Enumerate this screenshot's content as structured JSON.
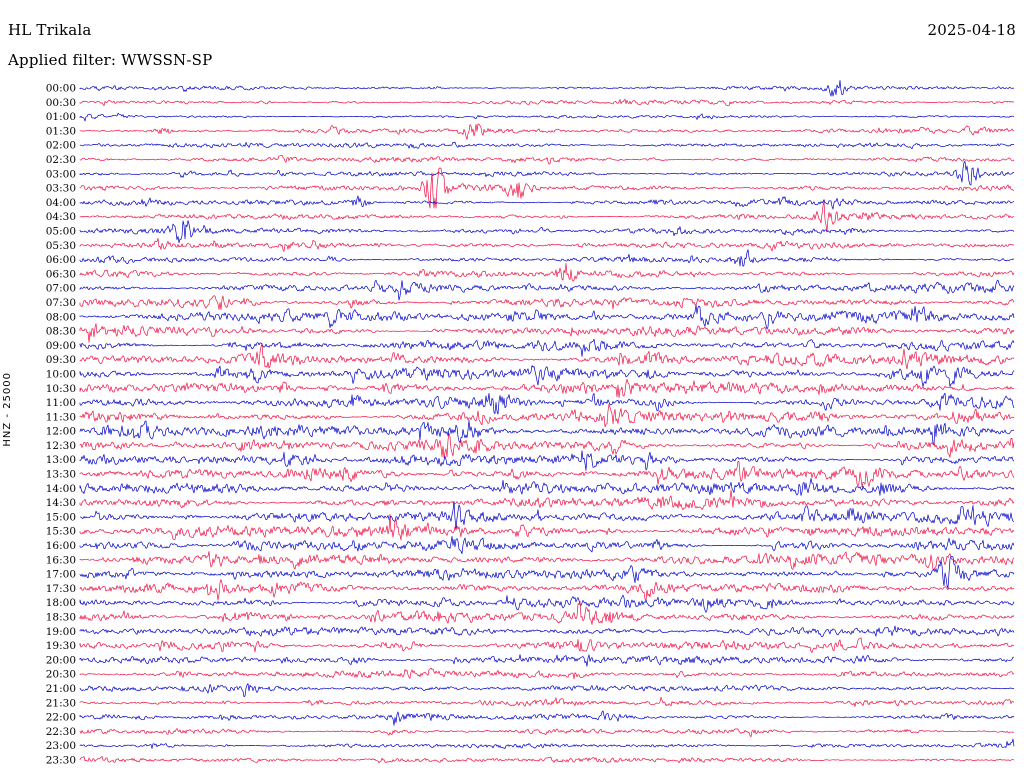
{
  "header": {
    "station": "HL Trikala",
    "date": "2025-04-18",
    "filter_label": "Applied filter: WWSSN-SP"
  },
  "axis": {
    "channel_scale_label": "HNZ - 25000"
  },
  "chart_data": {
    "type": "seismogram",
    "title": "HL Trikala",
    "date": "2025-04-18",
    "filter": "WWSSN-SP",
    "channel": "HNZ",
    "scale": 25000,
    "row_interval_minutes": 30,
    "rows_per_day": 48,
    "trace_colors": [
      "#0000c8",
      "#ee1144"
    ],
    "background": "#ffffff",
    "rows": [
      {
        "time": "00:00",
        "color": 0,
        "amp": 0.3
      },
      {
        "time": "00:30",
        "color": 1,
        "amp": 0.32
      },
      {
        "time": "01:00",
        "color": 0,
        "amp": 0.28
      },
      {
        "time": "01:30",
        "color": 1,
        "amp": 0.38
      },
      {
        "time": "02:00",
        "color": 0,
        "amp": 0.36
      },
      {
        "time": "02:30",
        "color": 1,
        "amp": 0.42
      },
      {
        "time": "03:00",
        "color": 0,
        "amp": 0.45
      },
      {
        "time": "03:30",
        "color": 1,
        "amp": 0.5
      },
      {
        "time": "04:00",
        "color": 0,
        "amp": 0.52
      },
      {
        "time": "04:30",
        "color": 1,
        "amp": 0.5
      },
      {
        "time": "05:00",
        "color": 0,
        "amp": 0.45
      },
      {
        "time": "05:30",
        "color": 1,
        "amp": 0.48
      },
      {
        "time": "06:00",
        "color": 0,
        "amp": 0.5
      },
      {
        "time": "06:30",
        "color": 1,
        "amp": 0.6
      },
      {
        "time": "07:00",
        "color": 0,
        "amp": 0.72
      },
      {
        "time": "07:30",
        "color": 1,
        "amp": 0.85
      },
      {
        "time": "08:00",
        "color": 0,
        "amp": 0.9
      },
      {
        "time": "08:30",
        "color": 1,
        "amp": 0.88
      },
      {
        "time": "09:00",
        "color": 0,
        "amp": 0.92
      },
      {
        "time": "09:30",
        "color": 1,
        "amp": 0.95
      },
      {
        "time": "10:00",
        "color": 0,
        "amp": 0.92
      },
      {
        "time": "10:30",
        "color": 1,
        "amp": 0.95
      },
      {
        "time": "11:00",
        "color": 0,
        "amp": 1.0
      },
      {
        "time": "11:30",
        "color": 1,
        "amp": 1.0
      },
      {
        "time": "12:00",
        "color": 0,
        "amp": 0.98
      },
      {
        "time": "12:30",
        "color": 1,
        "amp": 0.95
      },
      {
        "time": "13:00",
        "color": 0,
        "amp": 0.95
      },
      {
        "time": "13:30",
        "color": 1,
        "amp": 0.92
      },
      {
        "time": "14:00",
        "color": 0,
        "amp": 0.95
      },
      {
        "time": "14:30",
        "color": 1,
        "amp": 0.95
      },
      {
        "time": "15:00",
        "color": 0,
        "amp": 0.98
      },
      {
        "time": "15:30",
        "color": 1,
        "amp": 0.95
      },
      {
        "time": "16:00",
        "color": 0,
        "amp": 0.92
      },
      {
        "time": "16:30",
        "color": 1,
        "amp": 0.9
      },
      {
        "time": "17:00",
        "color": 0,
        "amp": 0.85
      },
      {
        "time": "17:30",
        "color": 1,
        "amp": 0.78
      },
      {
        "time": "18:00",
        "color": 0,
        "amp": 0.75
      },
      {
        "time": "18:30",
        "color": 1,
        "amp": 0.72
      },
      {
        "time": "19:00",
        "color": 0,
        "amp": 0.7
      },
      {
        "time": "19:30",
        "color": 1,
        "amp": 0.68
      },
      {
        "time": "20:00",
        "color": 0,
        "amp": 0.6
      },
      {
        "time": "20:30",
        "color": 1,
        "amp": 0.55
      },
      {
        "time": "21:00",
        "color": 0,
        "amp": 0.5
      },
      {
        "time": "21:30",
        "color": 1,
        "amp": 0.52
      },
      {
        "time": "22:00",
        "color": 0,
        "amp": 0.5
      },
      {
        "time": "22:30",
        "color": 1,
        "amp": 0.48
      },
      {
        "time": "23:00",
        "color": 0,
        "amp": 0.45
      },
      {
        "time": "23:30",
        "color": 1,
        "amp": 0.46
      }
    ],
    "events": [
      {
        "row": 0,
        "pos": 0.81,
        "size": 3.0
      },
      {
        "row": 1,
        "pos": 0.2,
        "size": 1.5
      },
      {
        "row": 3,
        "pos": 0.09,
        "size": 1.6
      },
      {
        "row": 3,
        "pos": 0.42,
        "size": 1.2
      },
      {
        "row": 5,
        "pos": 0.62,
        "size": 1.4
      },
      {
        "row": 6,
        "pos": 0.95,
        "size": 2.6
      },
      {
        "row": 7,
        "pos": 0.38,
        "size": 3.2
      },
      {
        "row": 7,
        "pos": 0.47,
        "size": 1.5
      },
      {
        "row": 8,
        "pos": 0.3,
        "size": 1.6
      },
      {
        "row": 9,
        "pos": 0.8,
        "size": 1.8
      },
      {
        "row": 10,
        "pos": 0.11,
        "size": 1.5
      },
      {
        "row": 12,
        "pos": 0.71,
        "size": 1.6
      },
      {
        "row": 13,
        "pos": 0.52,
        "size": 1.5
      },
      {
        "row": 34,
        "pos": 0.93,
        "size": 1.4
      },
      {
        "row": 43,
        "pos": 0.25,
        "size": 1.3
      }
    ]
  }
}
